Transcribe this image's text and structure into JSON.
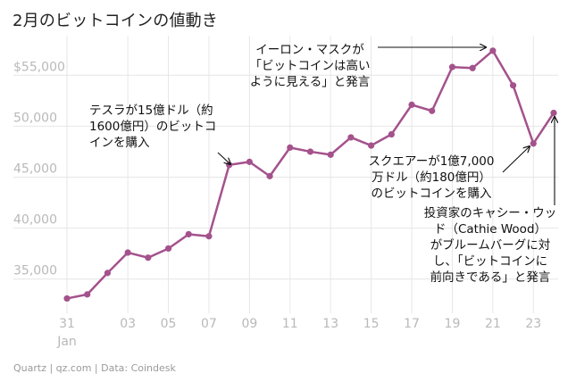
{
  "title": "2月のビットコインの値動き",
  "footer": "Quartz | qz.com | Data: Coindesk",
  "colors": {
    "line": "#a4528c",
    "grid": "#e6e6e6",
    "tick": "#b9b9b9",
    "text": "#111111"
  },
  "chart_data": {
    "type": "line",
    "title": "2月のビットコインの値動き",
    "xlabel": "",
    "ylabel": "",
    "x": [
      "Jan 31",
      "Feb 01",
      "Feb 02",
      "Feb 03",
      "Feb 04",
      "Feb 05",
      "Feb 06",
      "Feb 07",
      "Feb 08",
      "Feb 09",
      "Feb 10",
      "Feb 11",
      "Feb 12",
      "Feb 13",
      "Feb 14",
      "Feb 15",
      "Feb 16",
      "Feb 17",
      "Feb 18",
      "Feb 19",
      "Feb 20",
      "Feb 21",
      "Feb 22",
      "Feb 23",
      "Feb 24"
    ],
    "values": [
      33100,
      33500,
      35600,
      37600,
      37100,
      38000,
      39400,
      39200,
      46200,
      46500,
      45100,
      47900,
      47500,
      47200,
      48900,
      48100,
      49200,
      52100,
      51500,
      55800,
      55700,
      57400,
      54000,
      48300,
      51300
    ],
    "ylim": [
      32000,
      58000
    ],
    "y_ticks": [
      {
        "value": 35000,
        "label": "35,000"
      },
      {
        "value": 40000,
        "label": "40,000"
      },
      {
        "value": 45000,
        "label": "45,000"
      },
      {
        "value": 50000,
        "label": "50,000"
      },
      {
        "value": 55000,
        "label": "$55,000"
      }
    ],
    "x_ticks": [
      {
        "x": "Jan 31",
        "label": "31",
        "sublabel": "Jan"
      },
      {
        "x": "Feb 03",
        "label": "03"
      },
      {
        "x": "Feb 05",
        "label": "05"
      },
      {
        "x": "Feb 07",
        "label": "07"
      },
      {
        "x": "Feb 09",
        "label": "09"
      },
      {
        "x": "Feb 11",
        "label": "11"
      },
      {
        "x": "Feb 13",
        "label": "13"
      },
      {
        "x": "Feb 15",
        "label": "15"
      },
      {
        "x": "Feb 17",
        "label": "17"
      },
      {
        "x": "Feb 19",
        "label": "19"
      },
      {
        "x": "Feb 21",
        "label": "21"
      },
      {
        "x": "Feb 23",
        "label": "23"
      }
    ],
    "grid": true,
    "annotations": [
      {
        "lines": [
          "テスラが15億ドル（約",
          "1600億円）のビットコ",
          "インを購入"
        ],
        "target": "Feb 08"
      },
      {
        "lines": [
          "イーロン・マスクが",
          "「ビットコインは高い",
          "ように見える」と発言"
        ],
        "target": "Feb 21"
      },
      {
        "lines": [
          "スクエアーが1億7,000",
          "万ドル（約180億円）",
          "のビットコインを購入"
        ],
        "target": "Feb 23"
      },
      {
        "lines": [
          "投資家のキャシー・ウッ",
          "ド（Cathie Wood）",
          "がブルームバーグに対",
          "し、「ビットコインに",
          "前向きである」と発言"
        ],
        "target": "Feb 24"
      }
    ]
  }
}
